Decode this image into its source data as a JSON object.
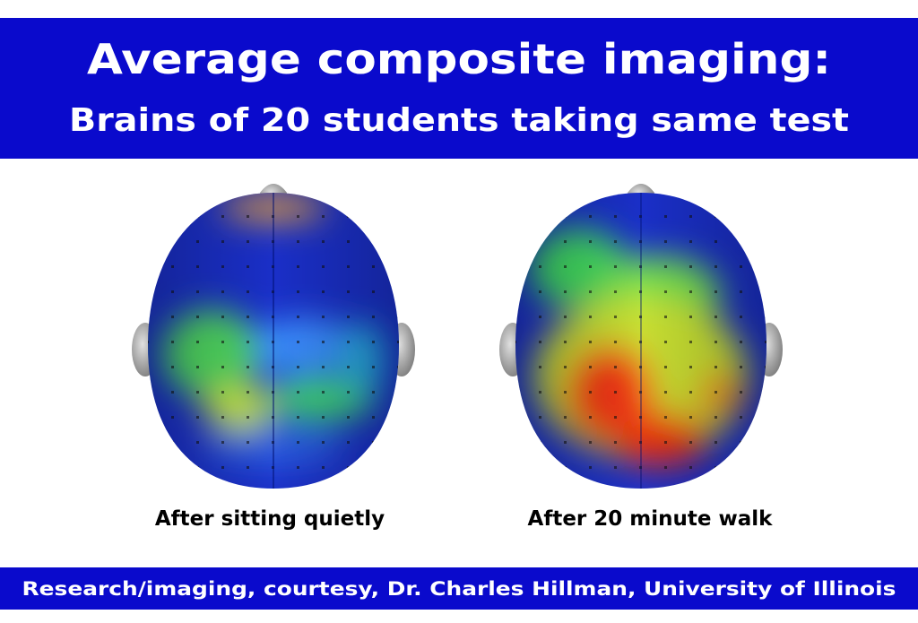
{
  "header": {
    "title": "Average composite imaging:",
    "subtitle": "Brains of 20 students taking same test"
  },
  "panels": [
    {
      "caption": "After sitting quietly"
    },
    {
      "caption": "After 20 minute walk"
    }
  ],
  "footer": {
    "credit": "Research/imaging, courtesy, Dr. Charles Hillman, University of Illinois"
  }
}
